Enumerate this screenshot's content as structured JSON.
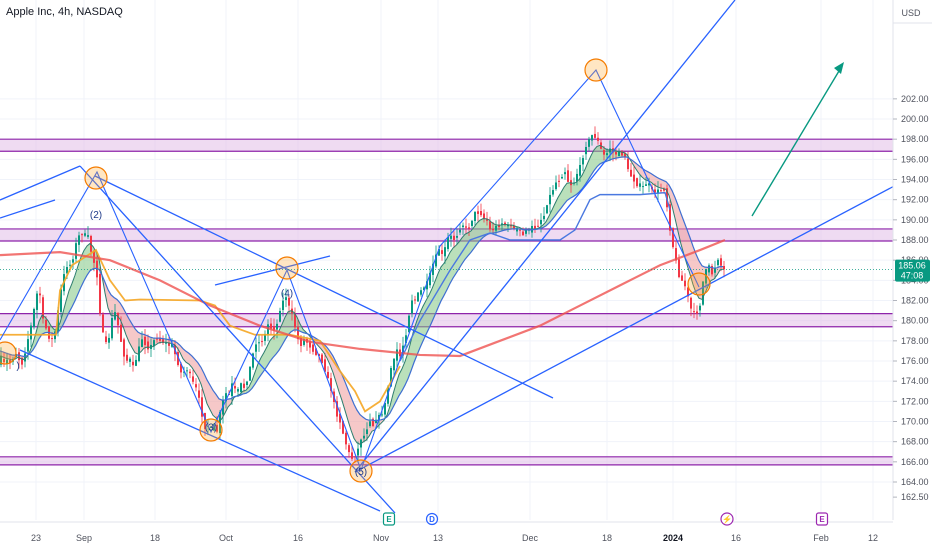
{
  "header": {
    "title": "Apple Inc, 4h, NASDAQ"
  },
  "chart_data": {
    "type": "candlestick",
    "currency": "USD",
    "y_axis": {
      "ticks": [
        162.5,
        164.0,
        166.0,
        168.0,
        170.0,
        172.0,
        174.0,
        176.0,
        178.0,
        180.0,
        182.0,
        184.0,
        186.0,
        188.0,
        190.0,
        192.0,
        194.0,
        196.0,
        198.0,
        200.0,
        202.0
      ],
      "tick_labels": [
        "162.50",
        "164.00",
        "166.00",
        "168.00",
        "170.00",
        "172.00",
        "174.00",
        "176.00",
        "178.00",
        "180.00",
        "182.00",
        "184.00",
        "186.00",
        "188.00",
        "190.00",
        "192.00",
        "194.00",
        "196.00",
        "198.00",
        "200.00",
        "202.00"
      ]
    },
    "x_axis": {
      "tick_labels": [
        "23",
        "Sep",
        "18",
        "Oct",
        "16",
        "Nov",
        "13",
        "Dec",
        "18",
        "2024",
        "16",
        "Feb",
        "12"
      ],
      "bold_label": "2024"
    },
    "last_price": {
      "value": "185.06",
      "countdown": "47:08",
      "color": "#089981"
    },
    "price_path": [
      [
        -10,
        177.5
      ],
      [
        -6,
        176.2
      ],
      [
        -2,
        175.5
      ],
      [
        2,
        176.5
      ],
      [
        5,
        175.6
      ],
      [
        7,
        176.3
      ],
      [
        11,
        175.7
      ],
      [
        15,
        176.4
      ],
      [
        19,
        177.0
      ],
      [
        22,
        175.3
      ],
      [
        25,
        176.2
      ],
      [
        28,
        177.6
      ],
      [
        32,
        179.2
      ],
      [
        35,
        180.8
      ],
      [
        38,
        182.6
      ],
      [
        41,
        183.0
      ],
      [
        44,
        180.2
      ],
      [
        48,
        179.1
      ],
      [
        52,
        177.9
      ],
      [
        56,
        178.6
      ],
      [
        59,
        180.6
      ],
      [
        63,
        183.4
      ],
      [
        67,
        185.2
      ],
      [
        70,
        185.7
      ],
      [
        73,
        185.4
      ],
      [
        76,
        187.1
      ],
      [
        79,
        188.1
      ],
      [
        82,
        188.7
      ],
      [
        84,
        188.6
      ],
      [
        87,
        188.5
      ],
      [
        90,
        188.3
      ],
      [
        93,
        186.6
      ],
      [
        96,
        185.6
      ],
      [
        99,
        184.2
      ],
      [
        101,
        181.4
      ],
      [
        103,
        179.2
      ],
      [
        105,
        178.5
      ],
      [
        107,
        177.8
      ],
      [
        109,
        177.4
      ],
      [
        111,
        178.7
      ],
      [
        113,
        180.0
      ],
      [
        116,
        181.0
      ],
      [
        119,
        179.8
      ],
      [
        122,
        178.2
      ],
      [
        125,
        176.7
      ],
      [
        128,
        176.0
      ],
      [
        131,
        176.3
      ],
      [
        134,
        175.3
      ],
      [
        137,
        176.0
      ],
      [
        140,
        177.1
      ],
      [
        143,
        178.3
      ],
      [
        146,
        177.8
      ],
      [
        149,
        177.3
      ],
      [
        152,
        177.4
      ],
      [
        155,
        178.0
      ],
      [
        159,
        178.3
      ],
      [
        163,
        177.9
      ],
      [
        167,
        177.8
      ],
      [
        170,
        177.5
      ],
      [
        173,
        177.8
      ],
      [
        175,
        176.9
      ],
      [
        177,
        176.6
      ],
      [
        180,
        175.6
      ],
      [
        183,
        174.7
      ],
      [
        186,
        175.0
      ],
      [
        189,
        175.2
      ],
      [
        192,
        174.5
      ],
      [
        195,
        173.7
      ],
      [
        198,
        173.2
      ],
      [
        201,
        172.0
      ],
      [
        203,
        170.9
      ],
      [
        205,
        169.8
      ],
      [
        207,
        169.3
      ],
      [
        210,
        169.7
      ],
      [
        213,
        169.2
      ],
      [
        216,
        169.7
      ],
      [
        219,
        168.9
      ],
      [
        222,
        171.2
      ],
      [
        225,
        172.2
      ],
      [
        228,
        172.9
      ],
      [
        231,
        172.6
      ],
      [
        234,
        173.9
      ],
      [
        237,
        173.0
      ],
      [
        240,
        173.1
      ],
      [
        243,
        173.8
      ],
      [
        246,
        173.3
      ],
      [
        249,
        174.3
      ],
      [
        252,
        175.6
      ],
      [
        254,
        176.5
      ],
      [
        257,
        177.8
      ],
      [
        260,
        177.8
      ],
      [
        263,
        178.0
      ],
      [
        266,
        178.4
      ],
      [
        269,
        179.7
      ],
      [
        272,
        179.3
      ],
      [
        275,
        179.1
      ],
      [
        278,
        179.4
      ],
      [
        281,
        181.0
      ],
      [
        284,
        181.8
      ],
      [
        287,
        182.6
      ],
      [
        290,
        181.5
      ],
      [
        293,
        180.8
      ],
      [
        296,
        179.6
      ],
      [
        299,
        178.3
      ],
      [
        302,
        177.4
      ],
      [
        304,
        178.3
      ],
      [
        307,
        178.0
      ],
      [
        310,
        177.7
      ],
      [
        313,
        177.2
      ],
      [
        316,
        176.9
      ],
      [
        319,
        176.6
      ],
      [
        322,
        176.3
      ],
      [
        325,
        175.6
      ],
      [
        328,
        174.6
      ],
      [
        331,
        173.7
      ],
      [
        334,
        172.6
      ],
      [
        337,
        171.0
      ],
      [
        340,
        170.3
      ],
      [
        342,
        169.9
      ],
      [
        344,
        169.0
      ],
      [
        346,
        168.3
      ],
      [
        348,
        167.6
      ],
      [
        350,
        167.0
      ],
      [
        352,
        166.5
      ],
      [
        354,
        166.3
      ],
      [
        356,
        166.6
      ],
      [
        358,
        166.9
      ],
      [
        360,
        167.4
      ],
      [
        363,
        168.5
      ],
      [
        366,
        168.6
      ],
      [
        369,
        169.5
      ],
      [
        372,
        170.3
      ],
      [
        375,
        169.5
      ],
      [
        378,
        170.5
      ],
      [
        381,
        170.5
      ],
      [
        384,
        170.9
      ],
      [
        387,
        171.9
      ],
      [
        390,
        173.8
      ],
      [
        393,
        175.6
      ],
      [
        395,
        175.8
      ],
      [
        398,
        177.3
      ],
      [
        401,
        176.3
      ],
      [
        404,
        177.4
      ],
      [
        407,
        178.4
      ],
      [
        410,
        180.3
      ],
      [
        413,
        182.1
      ],
      [
        416,
        182.0
      ],
      [
        419,
        182.6
      ],
      [
        422,
        182.9
      ],
      [
        425,
        183.3
      ],
      [
        428,
        183.6
      ],
      [
        431,
        184.4
      ],
      [
        434,
        185.5
      ],
      [
        437,
        186.2
      ],
      [
        440,
        187.3
      ],
      [
        443,
        186.4
      ],
      [
        446,
        187.0
      ],
      [
        449,
        188.2
      ],
      [
        452,
        188.4
      ],
      [
        455,
        188.0
      ],
      [
        458,
        188.4
      ],
      [
        461,
        189.1
      ],
      [
        464,
        189.6
      ],
      [
        467,
        189.1
      ],
      [
        470,
        189.1
      ],
      [
        473,
        189.9
      ],
      [
        476,
        190.7
      ],
      [
        479,
        190.7
      ],
      [
        482,
        190.7
      ],
      [
        485,
        190.1
      ],
      [
        488,
        190.1
      ],
      [
        491,
        189.0
      ],
      [
        494,
        189.0
      ],
      [
        497,
        189.3
      ],
      [
        500,
        189.4
      ],
      [
        503,
        189.7
      ],
      [
        506,
        189.6
      ],
      [
        509,
        189.3
      ],
      [
        512,
        189.6
      ],
      [
        515,
        189.0
      ],
      [
        518,
        189.1
      ],
      [
        521,
        189.0
      ],
      [
        524,
        188.3
      ],
      [
        527,
        189.2
      ],
      [
        530,
        188.8
      ],
      [
        533,
        189.3
      ],
      [
        536,
        189.2
      ],
      [
        539,
        189.4
      ],
      [
        542,
        190.0
      ],
      [
        545,
        190.2
      ],
      [
        548,
        191.5
      ],
      [
        551,
        192.3
      ],
      [
        554,
        192.9
      ],
      [
        557,
        193.7
      ],
      [
        560,
        193.8
      ],
      [
        563,
        194.3
      ],
      [
        566,
        195.0
      ],
      [
        569,
        193.9
      ],
      [
        572,
        193.5
      ],
      [
        575,
        193.6
      ],
      [
        578,
        194.5
      ],
      [
        581,
        195.1
      ],
      [
        584,
        196.1
      ],
      [
        587,
        197.3
      ],
      [
        590,
        197.8
      ],
      [
        593,
        198.4
      ],
      [
        596,
        198.3
      ],
      [
        599,
        197.9
      ],
      [
        602,
        197.1
      ],
      [
        605,
        196.4
      ],
      [
        608,
        196.5
      ],
      [
        611,
        197.2
      ],
      [
        614,
        196.7
      ],
      [
        617,
        196.5
      ],
      [
        620,
        196.7
      ],
      [
        623,
        196.5
      ],
      [
        626,
        196.5
      ],
      [
        629,
        195.0
      ],
      [
        632,
        194.4
      ],
      [
        635,
        194.0
      ],
      [
        638,
        193.5
      ],
      [
        641,
        193.5
      ],
      [
        644,
        193.2
      ],
      [
        647,
        193.6
      ],
      [
        650,
        193.6
      ],
      [
        653,
        192.9
      ],
      [
        656,
        192.8
      ],
      [
        659,
        192.9
      ],
      [
        662,
        192.8
      ],
      [
        665,
        193.3
      ],
      [
        668,
        191.7
      ],
      [
        671,
        189.4
      ],
      [
        674,
        187.6
      ],
      [
        677,
        186.1
      ],
      [
        680,
        184.6
      ],
      [
        683,
        184.0
      ],
      [
        686,
        183.7
      ],
      [
        688,
        182.6
      ],
      [
        690,
        182.2
      ],
      [
        692,
        181.3
      ],
      [
        694,
        180.8
      ],
      [
        696,
        180.7
      ],
      [
        698,
        180.8
      ],
      [
        700,
        181.0
      ],
      [
        702,
        181.8
      ],
      [
        705,
        184.3
      ],
      [
        708,
        185.1
      ],
      [
        711,
        185.4
      ],
      [
        714,
        184.5
      ],
      [
        717,
        185.5
      ],
      [
        720,
        186.3
      ],
      [
        723,
        185.3
      ],
      [
        725,
        185.06
      ]
    ],
    "horizontal_zones": [
      {
        "top": 198.0,
        "bottom": 196.8
      },
      {
        "top": 189.1,
        "bottom": 187.9
      },
      {
        "top": 180.7,
        "bottom": 179.4
      },
      {
        "top": 166.5,
        "bottom": 165.7
      }
    ],
    "wave_labels": [
      {
        "text": "(2)",
        "x": 96,
        "price": 190.2
      },
      {
        "text": "(3)",
        "x": 211,
        "price": 169.1
      },
      {
        "text": "(4)",
        "x": 287,
        "price": 182.4
      },
      {
        "text": "(5)",
        "x": 361,
        "price": 164.7
      }
    ],
    "event_markers": [
      {
        "letter": "E",
        "x": 389,
        "color": "#089981"
      },
      {
        "letter": "D",
        "x": 432,
        "color": "#2962ff"
      },
      {
        "letter": "⚡",
        "x": 727,
        "color": "#9c27b0"
      },
      {
        "letter": "E",
        "x": 822,
        "color": "#9c27b0"
      }
    ]
  }
}
